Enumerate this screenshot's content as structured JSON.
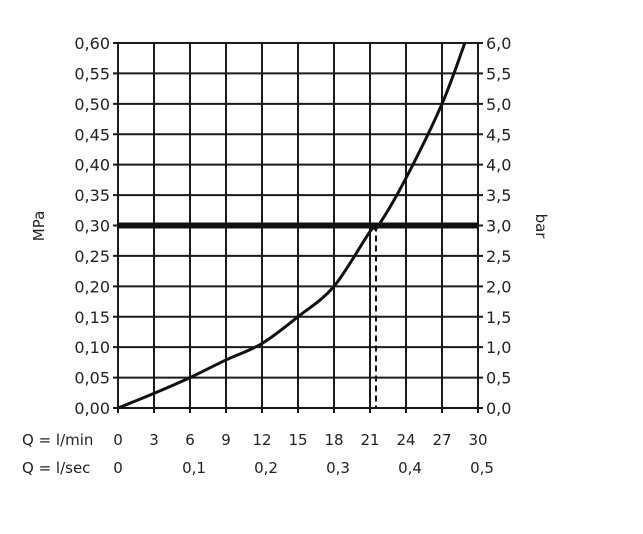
{
  "chart_data": {
    "type": "line",
    "title": "",
    "ylabel_left": "MPa",
    "ylabel_right": "bar",
    "x_row_labels": [
      "Q = l/min",
      "Q = l/sec"
    ],
    "xlim": [
      0,
      30
    ],
    "ylim": [
      0,
      0.6
    ],
    "y2lim": [
      0,
      6.0
    ],
    "grid": true,
    "x_ticks": [
      "0",
      "3",
      "6",
      "9",
      "12",
      "15",
      "18",
      "21",
      "24",
      "27",
      "30"
    ],
    "x2_ticks": [
      {
        "value": 0,
        "label": "0"
      },
      {
        "value": 6,
        "label": "0,1"
      },
      {
        "value": 12,
        "label": "0,2"
      },
      {
        "value": 18,
        "label": "0,3"
      },
      {
        "value": 24,
        "label": "0,4"
      },
      {
        "value": 30,
        "label": "0,5"
      }
    ],
    "y_ticks": [
      "0,00",
      "0,05",
      "0,10",
      "0,15",
      "0,20",
      "0,25",
      "0,30",
      "0,35",
      "0,40",
      "0,45",
      "0,50",
      "0,55",
      "0,60"
    ],
    "y2_ticks": [
      "0,0",
      "0,5",
      "1,0",
      "1,5",
      "2,0",
      "2,5",
      "3,0",
      "3,5",
      "4,0",
      "4,5",
      "5,0",
      "5,5",
      "6,0"
    ],
    "series": [
      {
        "x": [
          0,
          3,
          6,
          9,
          12,
          15,
          18,
          21,
          21.7,
          24,
          27,
          28.9
        ],
        "y": [
          0,
          0.024,
          0.05,
          0.079,
          0.106,
          0.15,
          0.2,
          0.29,
          0.3,
          0.378,
          0.5,
          0.6
        ]
      }
    ],
    "reference_line": {
      "y": 0.3
    },
    "marker_line": {
      "x": 21.5,
      "y": 0.3
    },
    "colors": {
      "line": "#111111",
      "grid": "#1a1a1a"
    }
  }
}
